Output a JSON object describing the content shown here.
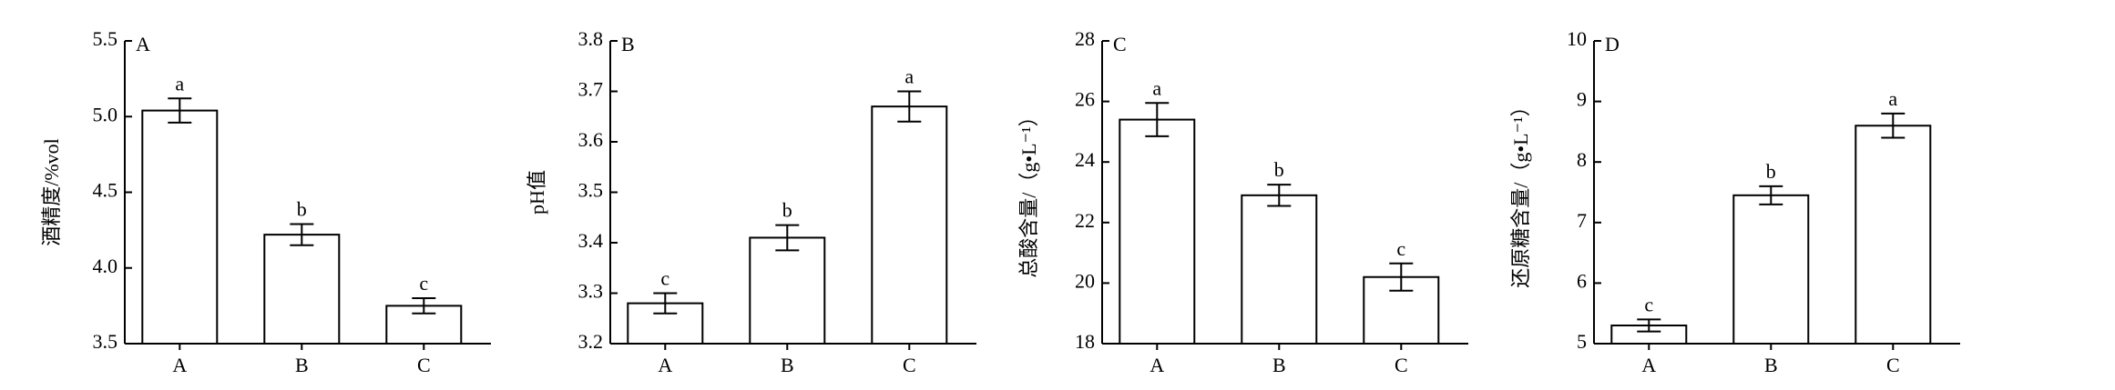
{
  "chart_data": [
    {
      "type": "bar",
      "panel_label": "A",
      "y_label": "酒精度/%vol",
      "categories": [
        "A",
        "B",
        "C"
      ],
      "values": [
        5.04,
        4.22,
        3.75
      ],
      "errors": [
        0.08,
        0.07,
        0.05
      ],
      "annotations": [
        "a",
        "b",
        "c"
      ],
      "ylim": [
        3.5,
        5.5
      ],
      "yticks": [
        3.5,
        {
          "value": 4,
          "label": "4.0"
        },
        4.5,
        {
          "value": 5,
          "label": "5.0"
        },
        5.5
      ],
      "color": "#ffffff"
    },
    {
      "type": "bar",
      "panel_label": "B",
      "y_label": "pH值",
      "categories": [
        "A",
        "B",
        "C"
      ],
      "values": [
        3.28,
        3.41,
        3.67
      ],
      "errors": [
        0.02,
        0.025,
        0.03
      ],
      "annotations": [
        "c",
        "b",
        "a"
      ],
      "ylim": [
        3.2,
        3.8
      ],
      "yticks": [
        3.2,
        3.3,
        3.4,
        3.5,
        3.6,
        3.7,
        3.8
      ],
      "color": "#ffffff"
    },
    {
      "type": "bar",
      "panel_label": "C",
      "y_label": "总酸含量/（g•L⁻¹）",
      "categories": [
        "A",
        "B",
        "C"
      ],
      "values": [
        25.4,
        22.9,
        20.2
      ],
      "errors": [
        0.55,
        0.35,
        0.45
      ],
      "annotations": [
        "a",
        "b",
        "c"
      ],
      "ylim": [
        18,
        28
      ],
      "yticks": [
        18,
        20,
        22,
        24,
        26,
        28
      ],
      "color": "#ffffff"
    },
    {
      "type": "bar",
      "panel_label": "D",
      "y_label": "还原糖含量/（g•L⁻¹）",
      "categories": [
        "A",
        "B",
        "C"
      ],
      "values": [
        5.3,
        7.45,
        8.6
      ],
      "errors": [
        0.1,
        0.15,
        0.2
      ],
      "annotations": [
        "c",
        "b",
        "a"
      ],
      "ylim": [
        5,
        10
      ],
      "yticks": [
        5,
        6,
        7,
        8,
        9,
        10
      ],
      "color": "#ffffff"
    }
  ]
}
